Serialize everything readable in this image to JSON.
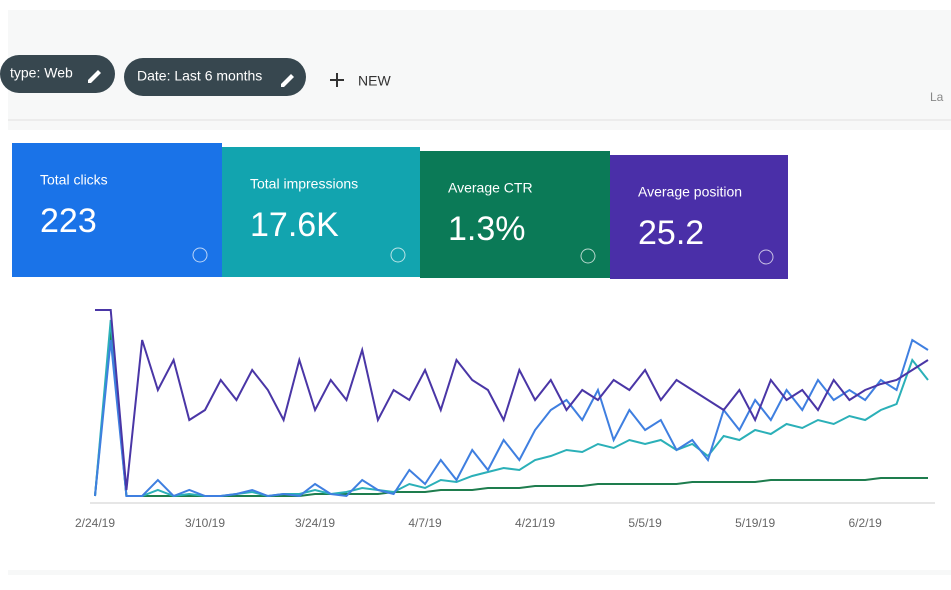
{
  "filters": {
    "chips": [
      "type: Web",
      "Date: Last 6 months"
    ],
    "new_button": "NEW",
    "cut_text": "La"
  },
  "cards": [
    {
      "title": "Total clicks",
      "value": "223",
      "color": "#1a73e8"
    },
    {
      "title": "Total impressions",
      "value": "17.6K",
      "color": "#12a4af"
    },
    {
      "title": "Average CTR",
      "value": "1.3%",
      "color": "#0b7a57"
    },
    {
      "title": "Average position",
      "value": "25.2",
      "color": "#4a2fa8"
    }
  ],
  "chart_data": {
    "type": "line",
    "ylim": [
      0,
      100
    ],
    "categories": [
      "2/24/19",
      null,
      null,
      null,
      null,
      null,
      null,
      "3/10/19",
      null,
      null,
      null,
      null,
      null,
      null,
      "3/24/19",
      null,
      null,
      null,
      null,
      null,
      null,
      "4/7/19",
      null,
      null,
      null,
      null,
      null,
      null,
      "4/21/19",
      null,
      null,
      null,
      null,
      null,
      null,
      "5/5/19",
      null,
      null,
      null,
      null,
      null,
      null,
      "5/19/19",
      null,
      null,
      null,
      null,
      null,
      null,
      "6/2/19",
      null,
      null,
      null,
      null
    ],
    "series": [
      {
        "color": "#4a36a6",
        "values": [
          95,
          95,
          5,
          80,
          55,
          70,
          40,
          45,
          60,
          50,
          65,
          55,
          40,
          70,
          45,
          60,
          50,
          75,
          40,
          55,
          50,
          65,
          45,
          70,
          60,
          55,
          40,
          65,
          50,
          60,
          45,
          55,
          50,
          60,
          55,
          65,
          50,
          60,
          55,
          50,
          45,
          55,
          40,
          60,
          50,
          55,
          45,
          60,
          50,
          55,
          58,
          60,
          65,
          70
        ]
      },
      {
        "color": "#3f7fe0",
        "values": [
          2,
          80,
          2,
          2,
          10,
          2,
          5,
          2,
          2,
          3,
          5,
          2,
          3,
          2,
          8,
          3,
          2,
          10,
          5,
          3,
          15,
          8,
          20,
          10,
          25,
          15,
          30,
          20,
          35,
          45,
          50,
          40,
          55,
          30,
          45,
          35,
          40,
          25,
          30,
          20,
          45,
          35,
          50,
          40,
          55,
          45,
          60,
          50,
          55,
          50,
          60,
          55,
          80,
          75
        ]
      },
      {
        "color": "#2bb0b8",
        "values": [
          2,
          90,
          2,
          2,
          5,
          2,
          3,
          2,
          2,
          3,
          4,
          2,
          3,
          3,
          5,
          3,
          4,
          6,
          5,
          4,
          8,
          6,
          10,
          9,
          12,
          14,
          16,
          15,
          20,
          22,
          25,
          24,
          28,
          26,
          30,
          28,
          30,
          25,
          28,
          22,
          32,
          30,
          35,
          33,
          38,
          36,
          40,
          38,
          42,
          40,
          45,
          48,
          70,
          60
        ]
      },
      {
        "color": "#1e7d4e",
        "values": [
          2,
          85,
          2,
          2,
          2,
          2,
          2,
          2,
          2,
          2,
          2,
          2,
          2,
          2,
          3,
          3,
          3,
          3,
          3,
          4,
          4,
          4,
          5,
          5,
          5,
          6,
          6,
          6,
          7,
          7,
          7,
          7,
          8,
          8,
          8,
          8,
          8,
          8,
          9,
          9,
          9,
          9,
          9,
          10,
          10,
          10,
          10,
          10,
          10,
          10,
          11,
          11,
          11,
          11
        ]
      }
    ]
  }
}
